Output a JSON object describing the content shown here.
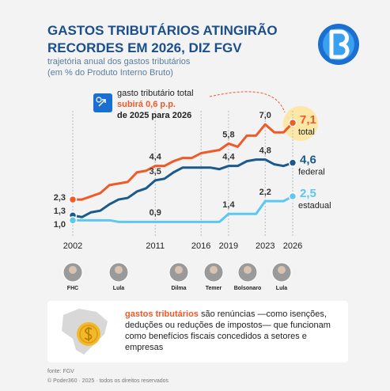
{
  "chart_data": {
    "type": "line",
    "title": "GASTOS TRIBUTÁRIOS ATINGIRÃO RECORDES EM 2026, DIZ FGV",
    "subtitle": [
      "trajetória anual dos gastos tributários",
      "(em % do Produto Interno Bruto)"
    ],
    "annotation": [
      "gasto tributário total",
      "subirá 0,6 p.p.",
      "de 2025 para 2026"
    ],
    "x": [
      2002,
      2003,
      2004,
      2005,
      2006,
      2007,
      2008,
      2009,
      2010,
      2011,
      2012,
      2013,
      2014,
      2015,
      2016,
      2017,
      2018,
      2019,
      2020,
      2021,
      2022,
      2023,
      2024,
      2025,
      2026
    ],
    "xlim": [
      2002,
      2026
    ],
    "xticks": [
      2002,
      2011,
      2016,
      2019,
      2023,
      2026
    ],
    "ylim": [
      0,
      8
    ],
    "grid": true,
    "series": [
      {
        "name": "total",
        "color": "#f05a28",
        "values": [
          2.3,
          2.3,
          2.5,
          2.7,
          3.2,
          3.3,
          3.4,
          4.0,
          4.1,
          4.4,
          4.4,
          4.7,
          4.9,
          4.9,
          5.2,
          5.3,
          5.4,
          5.8,
          5.6,
          6.3,
          6.3,
          7.0,
          6.5,
          6.5,
          7.1
        ],
        "value_labels": [
          "2,3",
          null,
          null,
          null,
          null,
          null,
          null,
          null,
          null,
          "4,4",
          null,
          null,
          null,
          null,
          null,
          null,
          null,
          "5,8",
          null,
          null,
          null,
          "7,0",
          null,
          null,
          "7,1"
        ]
      },
      {
        "name": "federal",
        "color": "#1b5a8c",
        "values": [
          1.3,
          1.2,
          1.5,
          1.6,
          2.0,
          2.3,
          2.4,
          2.8,
          3.0,
          3.5,
          3.6,
          4.0,
          4.3,
          4.3,
          4.3,
          4.3,
          4.2,
          4.4,
          4.4,
          4.7,
          4.8,
          4.8,
          4.5,
          4.4,
          4.6
        ],
        "value_labels": [
          "1,3",
          null,
          null,
          null,
          null,
          null,
          null,
          null,
          null,
          "3,5",
          null,
          null,
          null,
          null,
          null,
          null,
          null,
          "4,4",
          null,
          null,
          null,
          "4,8",
          null,
          null,
          "4,6"
        ]
      },
      {
        "name": "estadual",
        "color": "#5bc8f0",
        "values": [
          1.0,
          1.0,
          1.0,
          1.0,
          1.0,
          0.9,
          0.9,
          0.9,
          0.9,
          0.9,
          0.9,
          0.9,
          0.9,
          0.9,
          0.9,
          0.9,
          0.9,
          1.4,
          1.4,
          1.4,
          1.4,
          2.2,
          2.2,
          2.2,
          2.5
        ],
        "value_labels": [
          "1,0",
          null,
          null,
          null,
          null,
          null,
          null,
          null,
          null,
          "0,9",
          null,
          null,
          null,
          null,
          null,
          null,
          null,
          "1,4",
          null,
          null,
          null,
          "2,2",
          null,
          null,
          "2,5"
        ]
      }
    ]
  },
  "presidents": [
    "FHC",
    "Lula",
    "Dilma",
    "Temer",
    "Bolsonaro",
    "Lula"
  ],
  "note": {
    "term": "gastos tributários",
    "text": "são renúncias —como isenções, deduções ou reduções de impostos— que funcionam como benefícios fiscais concedidos a setores e empresas"
  },
  "footer": {
    "source": "fonte: FGV",
    "copyright": "© Poder360 · 2025 · todos os direitos reservados"
  }
}
